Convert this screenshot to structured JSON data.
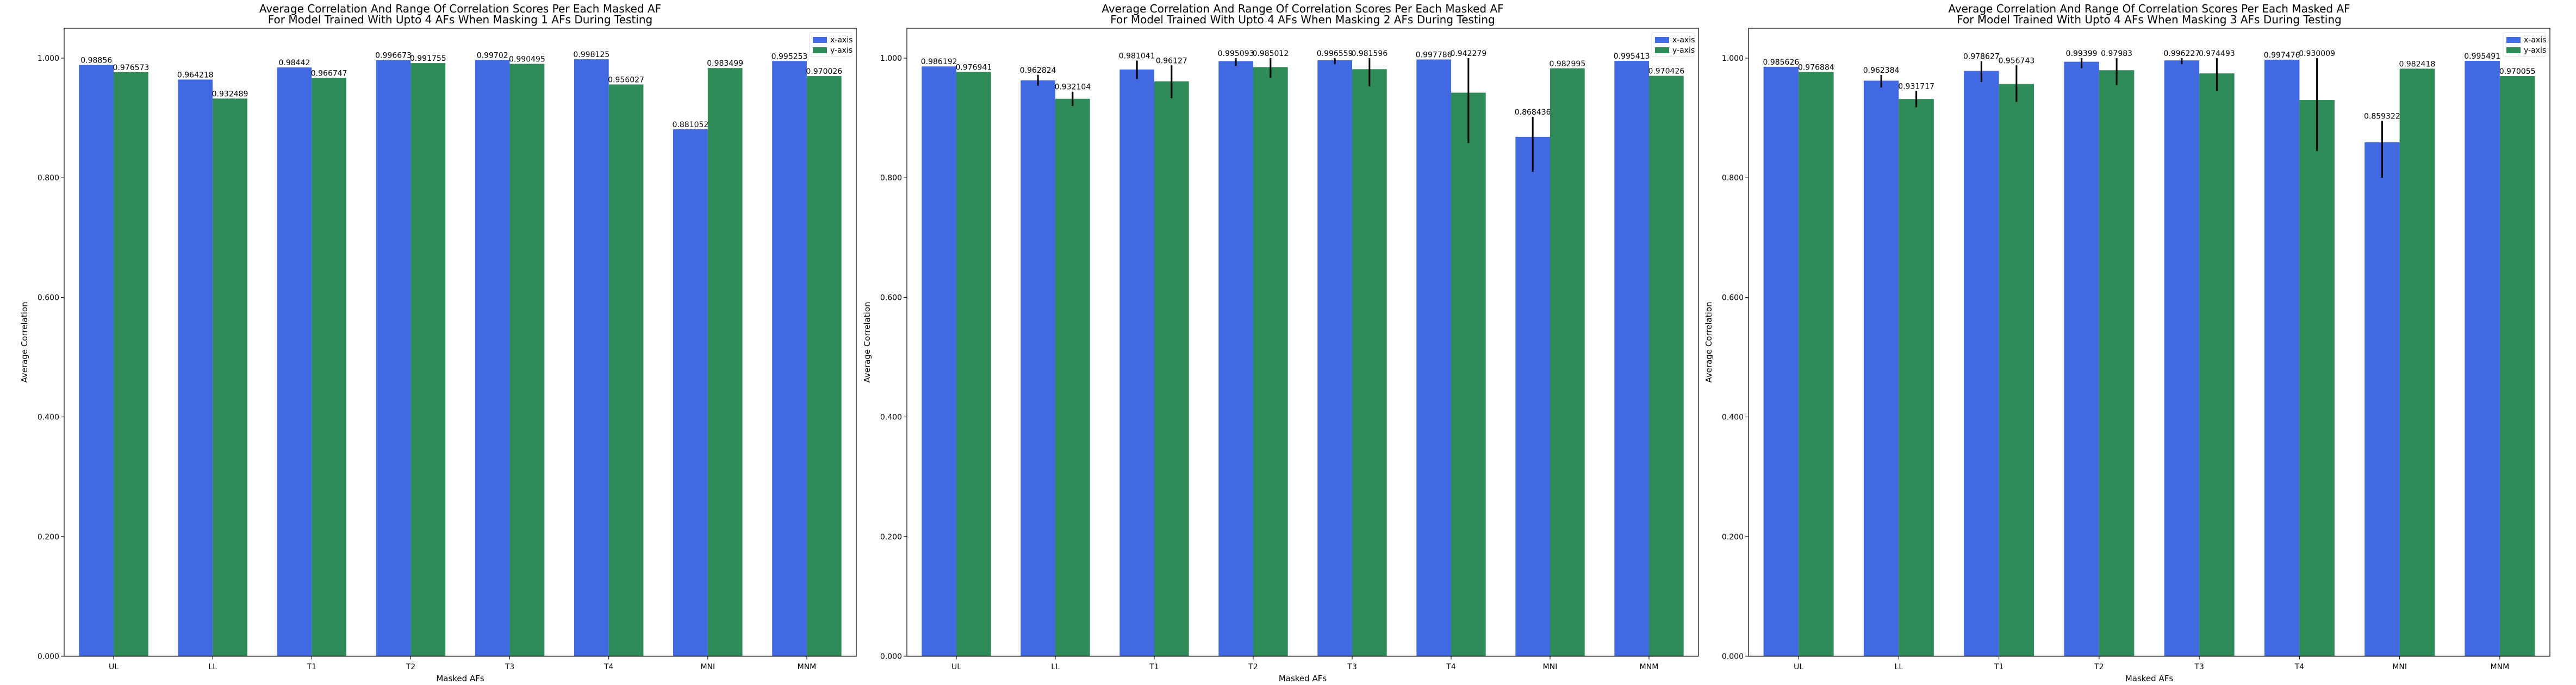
{
  "chart_data": [
    {
      "type": "bar",
      "title": [
        "Average Correlation And Range Of Correlation Scores Per Each Masked AF",
        "For Model Trained With Upto 4 AFs When Masking 1 AFs During Testing"
      ],
      "xlabel": "Masked AFs",
      "ylabel": "Average Correlation",
      "ylim": [
        0,
        1.05
      ],
      "yticks": [
        0,
        0.2,
        0.4,
        0.6,
        0.8,
        1.0
      ],
      "ytick_labels": [
        "0.000",
        "0.200",
        "0.400",
        "0.600",
        "0.800",
        "1.000"
      ],
      "categories": [
        "UL",
        "LL",
        "T1",
        "T2",
        "T3",
        "T4",
        "MNI",
        "MNM"
      ],
      "legend_position": "top-right",
      "grid": false,
      "series": [
        {
          "name": "x-axis",
          "color": "#4169e1",
          "values": [
            0.98856,
            0.964218,
            0.98442,
            0.996673,
            0.99702,
            0.998125,
            0.881052,
            0.995253
          ],
          "value_labels": [
            "0.98856",
            "0.964218",
            "0.98442",
            "0.996673",
            "0.99702",
            "0.998125",
            "0.881052",
            "0.995253"
          ],
          "range_low": [
            null,
            null,
            null,
            null,
            null,
            null,
            null,
            null
          ],
          "range_high": [
            null,
            null,
            null,
            null,
            null,
            null,
            null,
            null
          ]
        },
        {
          "name": "y-axis",
          "color": "#2e8b57",
          "values": [
            0.976573,
            0.932489,
            0.966747,
            0.991755,
            0.990495,
            0.956027,
            0.983499,
            0.970026
          ],
          "value_labels": [
            "0.976573",
            "0.932489",
            "0.966747",
            "0.991755",
            "0.990495",
            "0.956027",
            "0.983499",
            "0.970026"
          ],
          "range_low": [
            null,
            null,
            null,
            null,
            null,
            null,
            null,
            null
          ],
          "range_high": [
            null,
            null,
            null,
            null,
            null,
            null,
            null,
            null
          ]
        }
      ]
    },
    {
      "type": "bar",
      "title": [
        "Average Correlation And Range Of Correlation Scores Per Each Masked AF",
        "For Model Trained With Upto 4 AFs When Masking 2 AFs During Testing"
      ],
      "xlabel": "Masked AFs",
      "ylabel": "Average Correlation",
      "ylim": [
        0,
        1.05
      ],
      "yticks": [
        0,
        0.2,
        0.4,
        0.6,
        0.8,
        1.0
      ],
      "ytick_labels": [
        "0.000",
        "0.200",
        "0.400",
        "0.600",
        "0.800",
        "1.000"
      ],
      "categories": [
        "UL",
        "LL",
        "T1",
        "T2",
        "T3",
        "T4",
        "MNI",
        "MNM"
      ],
      "legend_position": "top-right",
      "grid": false,
      "series": [
        {
          "name": "x-axis",
          "color": "#4169e1",
          "values": [
            0.986192,
            0.962824,
            0.981041,
            0.995093,
            0.996559,
            0.997786,
            0.868436,
            0.995413
          ],
          "value_labels": [
            "0.986192",
            "0.962824",
            "0.981041",
            "0.995093",
            "0.996559",
            "0.997786",
            "0.868436",
            "0.995413"
          ],
          "range_low": [
            null,
            0.954,
            0.965,
            0.987,
            0.99,
            null,
            0.81,
            null
          ],
          "range_high": [
            null,
            0.972,
            0.996,
            1.0,
            1.0,
            null,
            0.902,
            null
          ]
        },
        {
          "name": "y-axis",
          "color": "#2e8b57",
          "values": [
            0.976941,
            0.932104,
            0.96127,
            0.985012,
            0.981596,
            0.942279,
            0.982995,
            0.970426
          ],
          "value_labels": [
            "0.976941",
            "0.932104",
            "0.96127",
            "0.985012",
            "0.981596",
            "0.942279",
            "0.982995",
            "0.970426"
          ],
          "range_low": [
            null,
            0.92,
            0.933,
            0.967,
            0.953,
            0.858,
            null,
            null
          ],
          "range_high": [
            null,
            0.944,
            0.988,
            1.0,
            1.0,
            1.0,
            null,
            null
          ]
        }
      ]
    },
    {
      "type": "bar",
      "title": [
        "Average Correlation And Range Of Correlation Scores Per Each Masked AF",
        "For Model Trained With Upto 4 AFs When Masking 3 AFs During Testing"
      ],
      "xlabel": "Masked AFs",
      "ylabel": "Average Correlation",
      "ylim": [
        0,
        1.05
      ],
      "yticks": [
        0,
        0.2,
        0.4,
        0.6,
        0.8,
        1.0
      ],
      "ytick_labels": [
        "0.000",
        "0.200",
        "0.400",
        "0.600",
        "0.800",
        "1.000"
      ],
      "categories": [
        "UL",
        "LL",
        "T1",
        "T2",
        "T3",
        "T4",
        "MNI",
        "MNM"
      ],
      "legend_position": "top-right",
      "grid": false,
      "series": [
        {
          "name": "x-axis",
          "color": "#4169e1",
          "values": [
            0.985626,
            0.962384,
            0.978627,
            0.99399,
            0.996227,
            0.997476,
            0.859322,
            0.995491
          ],
          "value_labels": [
            "0.985626",
            "0.962384",
            "0.978627",
            "0.99399",
            "0.996227",
            "0.997476",
            "0.859322",
            "0.995491"
          ],
          "range_low": [
            null,
            0.951,
            0.96,
            0.983,
            0.99,
            null,
            0.8,
            null
          ],
          "range_high": [
            null,
            0.972,
            0.995,
            1.0,
            1.0,
            null,
            0.895,
            null
          ]
        },
        {
          "name": "y-axis",
          "color": "#2e8b57",
          "values": [
            0.976884,
            0.931717,
            0.956743,
            0.97983,
            0.974493,
            0.930009,
            0.982418,
            0.970055
          ],
          "value_labels": [
            "0.976884",
            "0.931717",
            "0.956743",
            "0.97983",
            "0.974493",
            "0.930009",
            "0.982418",
            "0.970055"
          ],
          "range_low": [
            null,
            0.918,
            0.927,
            0.955,
            0.945,
            0.845,
            null,
            null
          ],
          "range_high": [
            null,
            0.945,
            0.988,
            1.0,
            1.0,
            1.0,
            null,
            null
          ]
        }
      ]
    }
  ]
}
